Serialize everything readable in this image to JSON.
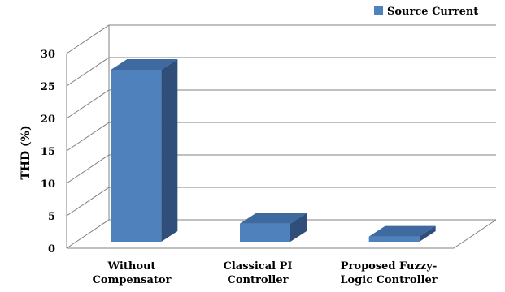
{
  "chart_data": {
    "type": "bar",
    "style": "3d-column",
    "categories": [
      [
        "Without",
        "Compensator"
      ],
      [
        "Classical PI",
        "Controller"
      ],
      [
        "Proposed Fuzzy-",
        "Logic Controller"
      ]
    ],
    "series": [
      {
        "name": "Source Current",
        "values": [
          26.5,
          2.8,
          0.8
        ]
      }
    ],
    "xlabel": "",
    "ylabel": "THD (%)",
    "ylim": [
      0,
      30
    ],
    "yticks": [
      0,
      5,
      10,
      15,
      20,
      25,
      30
    ],
    "grid": true,
    "legend": "top-right",
    "colors": {
      "front": "#4F81BD",
      "top": "#3E6AA0",
      "side": "#2F4F7A",
      "grid": "#808080"
    }
  }
}
